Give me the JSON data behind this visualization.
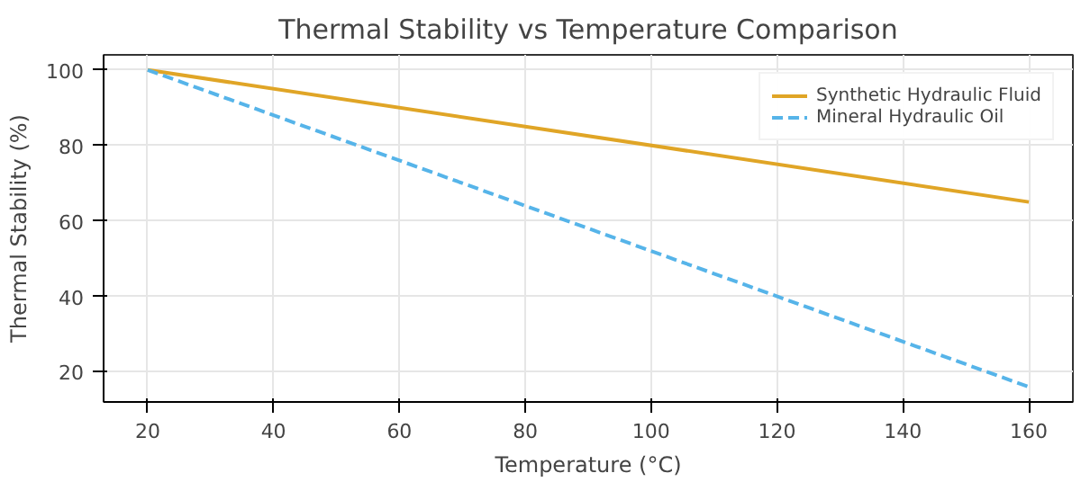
{
  "chart_data": {
    "type": "line",
    "title": "Thermal Stability vs Temperature Comparison",
    "xlabel": "Temperature (°C)",
    "ylabel": "Thermal Stability (%)",
    "x": [
      20,
      160
    ],
    "series": [
      {
        "name": "Synthetic Hydraulic Fluid",
        "color": "#e0a526",
        "values": [
          100,
          65
        ],
        "line_style": "solid"
      },
      {
        "name": "Mineral Hydraulic Oil",
        "color": "#56b4e9",
        "values": [
          100,
          16
        ],
        "line_style": "dashed"
      }
    ],
    "xlim": [
      13,
      167
    ],
    "ylim": [
      12,
      104
    ],
    "xticks": [
      20,
      40,
      60,
      80,
      100,
      120,
      140,
      160
    ],
    "yticks": [
      20,
      40,
      60,
      80,
      100
    ],
    "grid": true,
    "legend": "top right",
    "marker": "none"
  }
}
